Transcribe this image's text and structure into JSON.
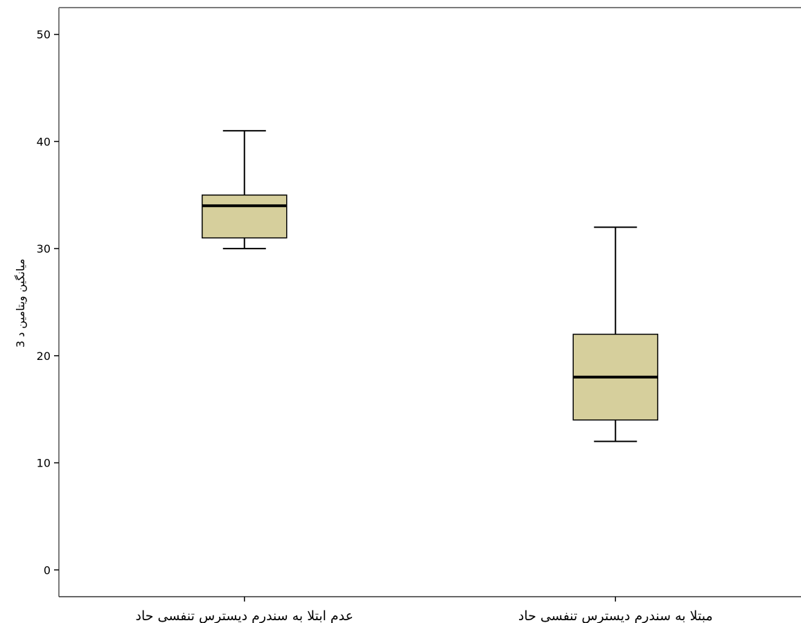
{
  "chart_data": {
    "type": "boxplot",
    "title": "",
    "xlabel": "",
    "ylabel": "میانگین ویتامین د 3",
    "ylim": [
      -2.5,
      52.5
    ],
    "yticks": [
      0,
      10,
      20,
      30,
      40,
      50
    ],
    "grid": false,
    "box_color": "#d6cf9c",
    "categories": [
      "عدم ابتلا به سندرم دیسترس تنفسی حاد",
      "مبتلا به سندرم دیسترس تنفسی حاد"
    ],
    "boxes": [
      {
        "category": "عدم ابتلا به سندرم دیسترس تنفسی حاد",
        "min": 30,
        "q1": 31,
        "median": 34,
        "q3": 35,
        "max": 41
      },
      {
        "category": "مبتلا به سندرم دیسترس تنفسی حاد",
        "min": 12,
        "q1": 14,
        "median": 18,
        "q3": 22,
        "max": 32
      }
    ]
  }
}
